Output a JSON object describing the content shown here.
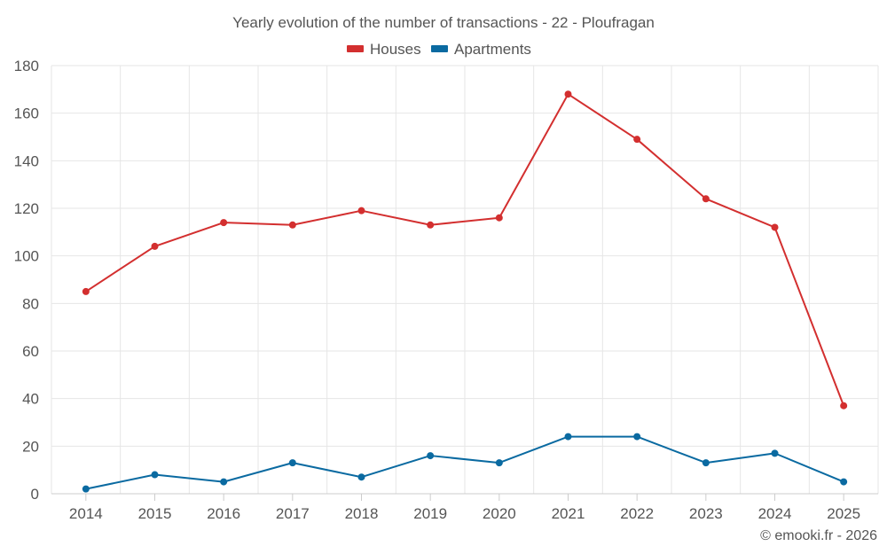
{
  "chart_data": {
    "type": "line",
    "title": "Yearly evolution of the number of transactions - 22 - Ploufragan",
    "xlabel": "",
    "ylabel": "",
    "categories": [
      "2014",
      "2015",
      "2016",
      "2017",
      "2018",
      "2019",
      "2020",
      "2021",
      "2022",
      "2023",
      "2024",
      "2025"
    ],
    "ylim": [
      0,
      180
    ],
    "yticks": [
      0,
      20,
      40,
      60,
      80,
      100,
      120,
      140,
      160,
      180
    ],
    "grid": true,
    "legend_position": "top-center",
    "series": [
      {
        "name": "Houses",
        "color": "#d32f2f",
        "values": [
          85,
          104,
          114,
          113,
          119,
          113,
          116,
          168,
          149,
          124,
          112,
          37
        ]
      },
      {
        "name": "Apartments",
        "color": "#0a6aa1",
        "values": [
          2,
          8,
          5,
          13,
          7,
          16,
          13,
          24,
          24,
          13,
          17,
          5
        ]
      }
    ]
  },
  "credit": "© emooki.fr - 2026"
}
